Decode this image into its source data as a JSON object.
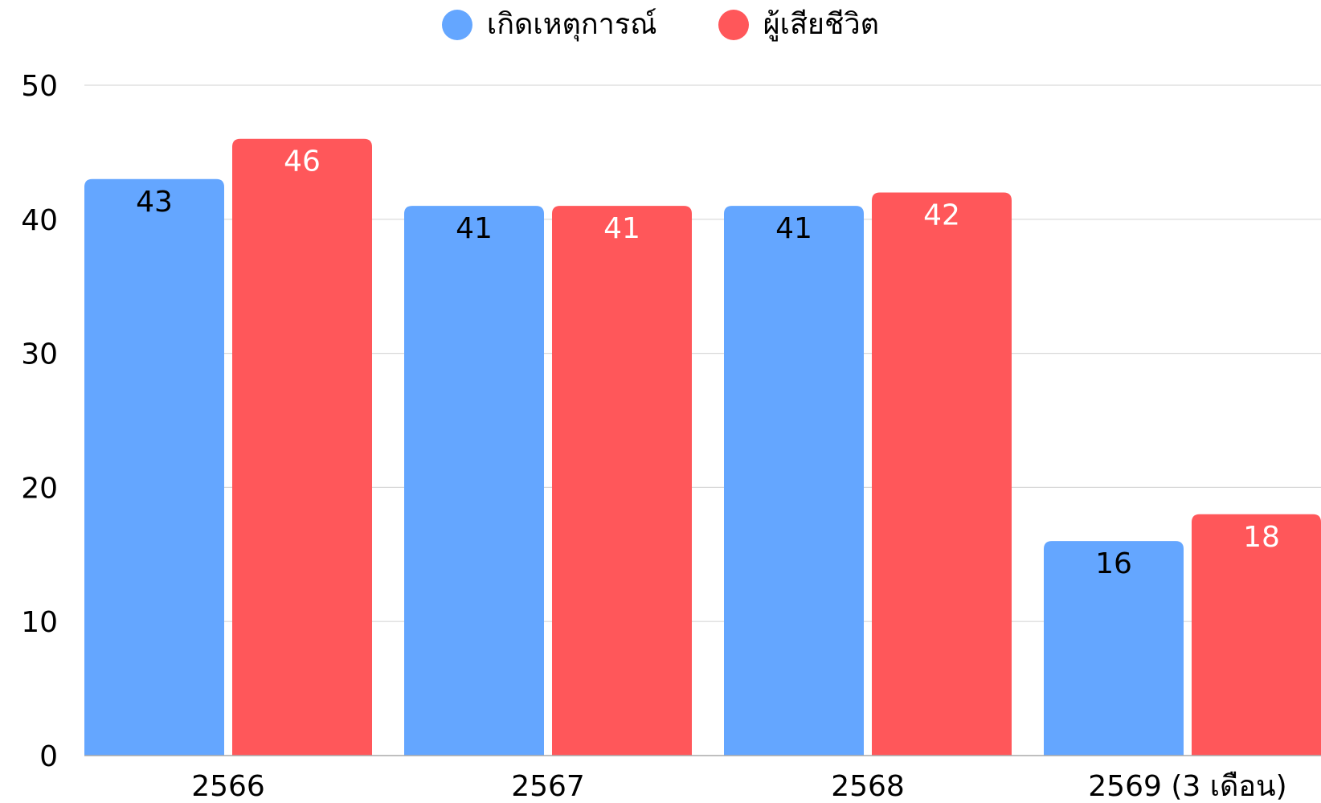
{
  "chart_data": {
    "type": "bar",
    "categories": [
      "2566",
      "2567",
      "2568",
      "2569 (3 เดือน)"
    ],
    "series": [
      {
        "name": "เกิดเหตุการณ์",
        "values": [
          43,
          41,
          41,
          16
        ],
        "color": "#64a6ff",
        "label_color": "#000000"
      },
      {
        "name": "ผู้เสียชีวิต",
        "values": [
          46,
          41,
          42,
          18
        ],
        "color": "#ff575a",
        "label_color": "#ffffff"
      }
    ],
    "ylim": [
      0,
      50
    ],
    "yticks": [
      0,
      10,
      20,
      30,
      40,
      50
    ],
    "ytick_labels": [
      "0",
      "10",
      "20",
      "30",
      "40",
      "50"
    ],
    "grid": true,
    "legend_position": "top-center",
    "data_labels": true
  }
}
